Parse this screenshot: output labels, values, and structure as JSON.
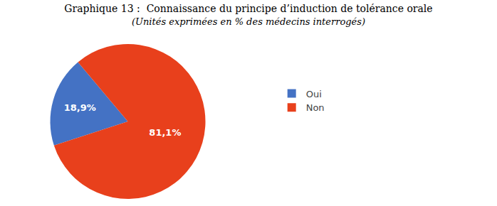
{
  "chart_data": {
    "type": "pie",
    "title": "Graphique 13 :  Connaissance du principe d’induction de tolérance orale",
    "subtitle": "(Unités exprimées en % des médecins interrogés)",
    "categories": [
      "Oui",
      "Non"
    ],
    "values": [
      18.9,
      81.1
    ],
    "value_labels": [
      "18,9%",
      "81,1%"
    ],
    "colors": [
      "#4472C4",
      "#E8401C"
    ],
    "data_labels": true,
    "legend": "right"
  }
}
